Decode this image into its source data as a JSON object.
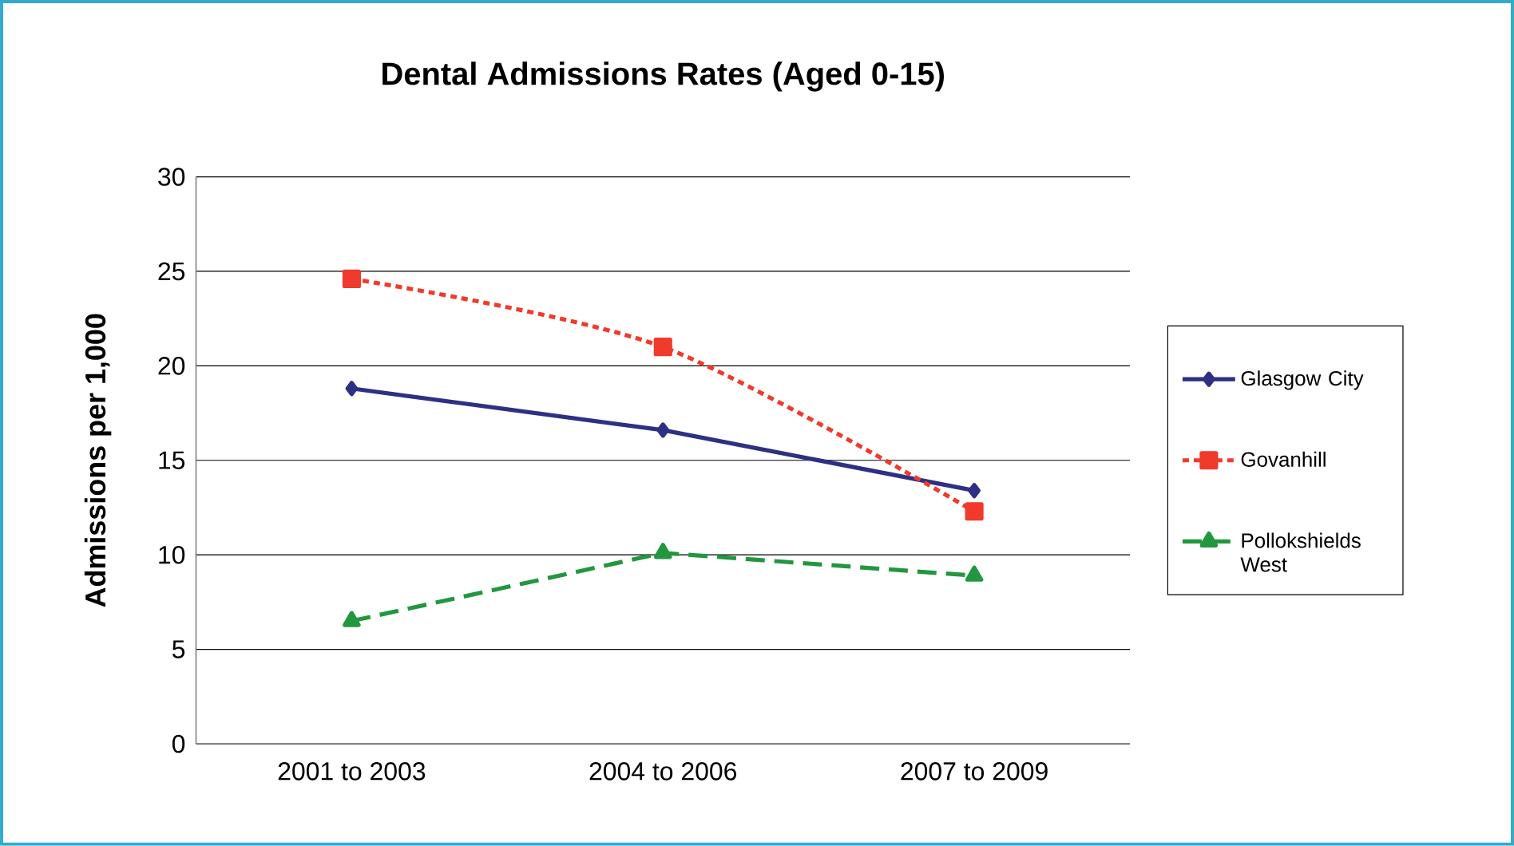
{
  "chart_data": {
    "type": "line",
    "title": "Dental Admissions Rates (Aged 0-15)",
    "ylabel": "Admissions per 1,000",
    "categories": [
      "2001 to 2003",
      "2004 to 2006",
      "2007 to 2009"
    ],
    "series": [
      {
        "name": "Glasgow City",
        "color": "#2e3083",
        "values": [
          18.8,
          16.6,
          13.4
        ],
        "marker": "diamond",
        "line_style": "solid"
      },
      {
        "name": "Govanhill",
        "color": "#f03a2c",
        "values": [
          24.6,
          21.0,
          12.3
        ],
        "marker": "square",
        "line_style": "dotted"
      },
      {
        "name": "Pollokshields West",
        "color": "#239640",
        "values": [
          6.5,
          10.1,
          8.9
        ],
        "marker": "triangle",
        "line_style": "dashed"
      }
    ],
    "ylim": [
      0,
      30
    ],
    "yticks": [
      0,
      5,
      10,
      15,
      20,
      25,
      30
    ],
    "grid": "y",
    "legend": "right"
  }
}
